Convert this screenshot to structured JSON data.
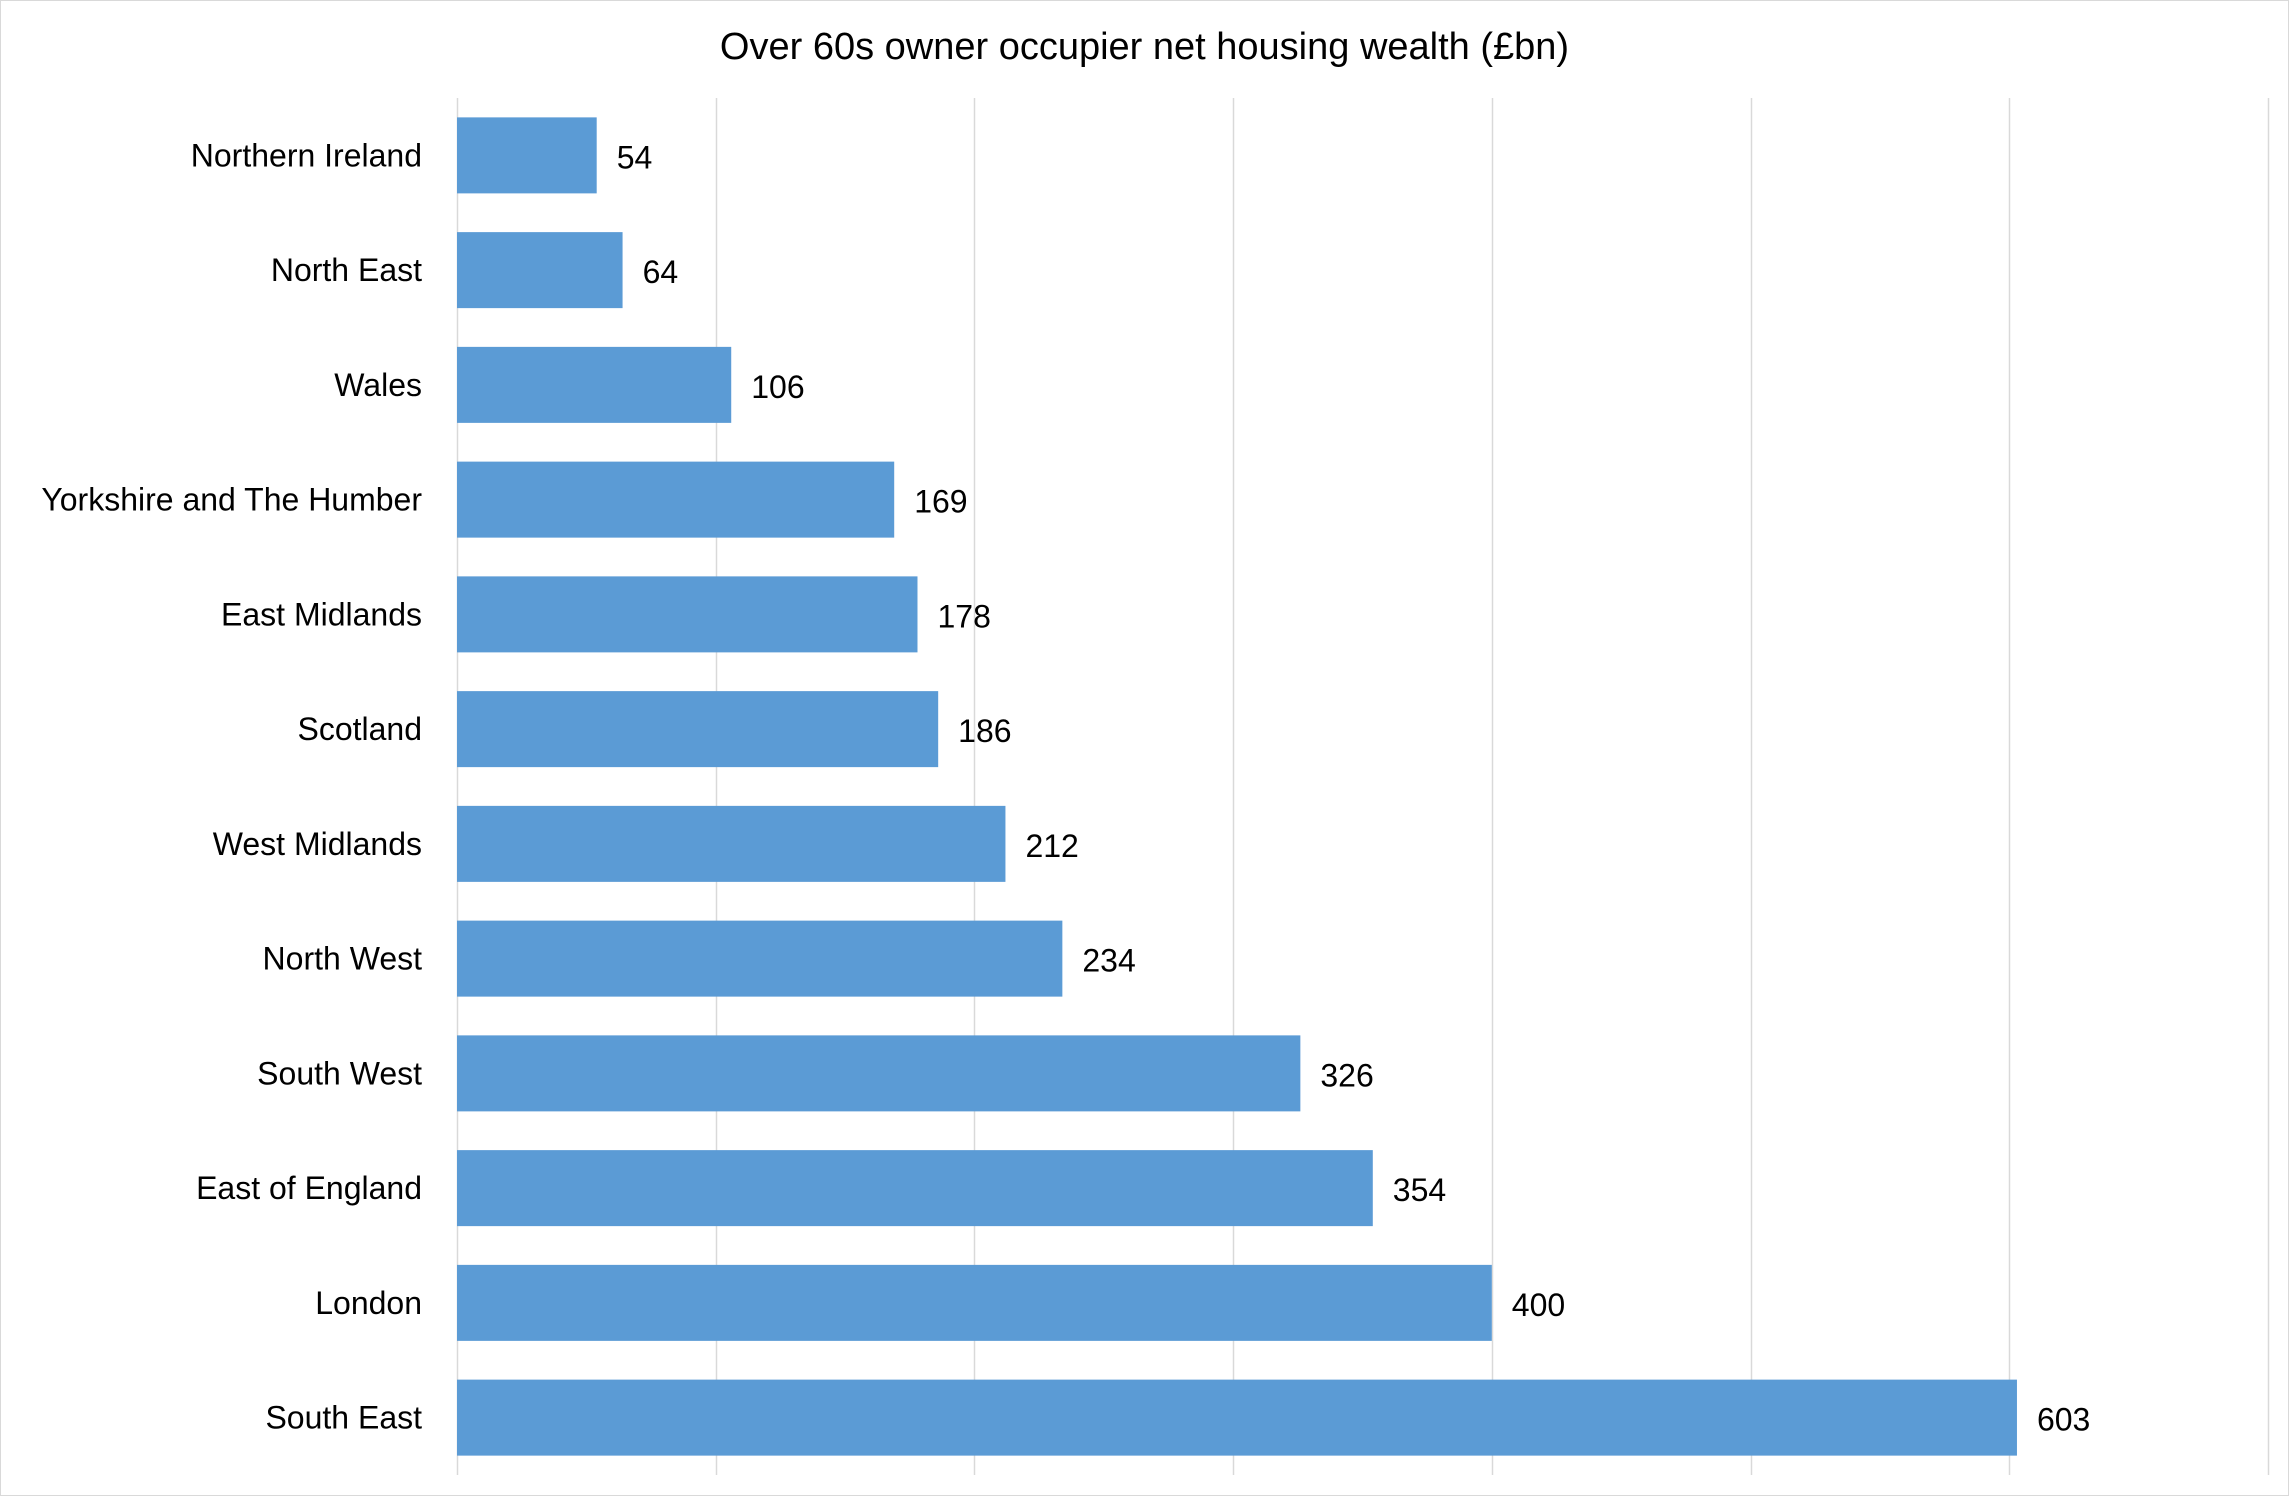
{
  "chart_data": {
    "type": "bar",
    "orientation": "horizontal",
    "title": "Over 60s owner occupier net housing wealth (£bn)",
    "xlabel": "",
    "ylabel": "",
    "categories": [
      "Northern Ireland",
      "North East",
      "Wales",
      "Yorkshire and The Humber",
      "East Midlands",
      "Scotland",
      "West Midlands",
      "North West",
      "South West",
      "East of England",
      "London",
      "South East"
    ],
    "values": [
      54,
      64,
      106,
      169,
      178,
      186,
      212,
      234,
      326,
      354,
      400,
      603
    ],
    "data_labels": [
      "54",
      "64",
      "106",
      "169",
      "178",
      "186",
      "212",
      "234",
      "326",
      "354",
      "400",
      "603"
    ],
    "xlim": [
      0,
      700
    ],
    "gridlines": "vertical",
    "grid_step": 100,
    "legend": "none",
    "bar_color": "#5b9bd5",
    "grid_color": "#d9d9d9"
  }
}
